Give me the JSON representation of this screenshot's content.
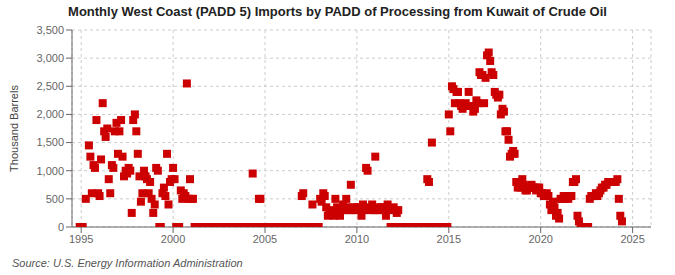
{
  "chart_data": {
    "type": "scatter",
    "title": "Monthly West Coast (PADD 5) Imports by PADD of Processing from Kuwait of Crude Oil",
    "ylabel": "Thousand Barrels",
    "annotations": [
      "Source: U.S. Energy Information Administration"
    ],
    "color": "#cc0000",
    "marker": "square",
    "grid": true,
    "xlim": [
      1994.5,
      2026.0
    ],
    "xticks": [
      1995,
      2000,
      2005,
      2010,
      2015,
      2020,
      2025
    ],
    "ylim": [
      0,
      3500
    ],
    "yticks": [
      0,
      500,
      {
        "value": 1000,
        "label": "1,000"
      },
      {
        "value": 1500,
        "label": "1,500"
      },
      {
        "value": 2000,
        "label": "2,000"
      },
      {
        "value": 2500,
        "label": "2,500"
      },
      {
        "value": 3000,
        "label": "3,000"
      },
      {
        "value": 3500,
        "label": "3,500"
      }
    ],
    "x": [
      1994.92,
      1995.08,
      1995.25,
      1995.42,
      1995.5,
      1995.58,
      1995.67,
      1995.75,
      1995.83,
      1995.92,
      1996.0,
      1996.08,
      1996.17,
      1996.25,
      1996.33,
      1996.42,
      1996.5,
      1996.58,
      1996.67,
      1996.75,
      1996.83,
      1996.92,
      1997.0,
      1997.08,
      1997.17,
      1997.25,
      1997.33,
      1997.42,
      1997.5,
      1997.58,
      1997.67,
      1997.75,
      1997.83,
      1997.92,
      1998.0,
      1998.08,
      1998.17,
      1998.25,
      1998.33,
      1998.42,
      1998.5,
      1998.58,
      1998.67,
      1998.75,
      1998.83,
      1998.92,
      1999.0,
      1999.08,
      1999.17,
      1999.25,
      1999.33,
      1999.42,
      1999.5,
      1999.58,
      1999.67,
      1999.75,
      1999.83,
      1999.92,
      2000.0,
      2000.08,
      2000.17,
      2000.25,
      2000.33,
      2000.42,
      2000.5,
      2000.58,
      2000.67,
      2000.75,
      2000.83,
      2000.92,
      2001.0,
      2001.08,
      2001.17,
      2001.25,
      2001.33,
      2001.42,
      2001.5,
      2001.58,
      2001.67,
      2001.75,
      2001.83,
      2001.92,
      2002.0,
      2002.08,
      2002.17,
      2002.25,
      2002.33,
      2002.42,
      2002.5,
      2002.58,
      2002.67,
      2002.75,
      2002.83,
      2002.92,
      2003.0,
      2003.08,
      2003.17,
      2003.25,
      2003.33,
      2003.42,
      2003.5,
      2003.58,
      2003.67,
      2003.75,
      2003.83,
      2003.92,
      2004.0,
      2004.08,
      2004.17,
      2004.25,
      2004.33,
      2004.42,
      2004.5,
      2004.58,
      2004.67,
      2004.75,
      2004.83,
      2004.92,
      2005.0,
      2005.08,
      2005.17,
      2005.25,
      2005.33,
      2005.42,
      2005.5,
      2005.58,
      2005.67,
      2005.75,
      2005.83,
      2005.92,
      2006.0,
      2006.08,
      2006.17,
      2006.25,
      2006.33,
      2006.42,
      2006.5,
      2006.58,
      2006.67,
      2006.75,
      2006.83,
      2006.92,
      2007.0,
      2007.08,
      2007.17,
      2007.25,
      2007.33,
      2007.42,
      2007.5,
      2007.58,
      2007.67,
      2007.75,
      2007.83,
      2007.92,
      2008.0,
      2008.08,
      2008.17,
      2008.25,
      2008.33,
      2008.42,
      2008.5,
      2008.58,
      2008.67,
      2008.75,
      2008.83,
      2008.92,
      2009.0,
      2009.08,
      2009.17,
      2009.25,
      2009.33,
      2009.42,
      2009.5,
      2009.58,
      2009.67,
      2009.75,
      2009.83,
      2009.92,
      2010.0,
      2010.08,
      2010.17,
      2010.25,
      2010.33,
      2010.42,
      2010.5,
      2010.58,
      2010.67,
      2010.75,
      2010.83,
      2010.92,
      2011.0,
      2011.08,
      2011.17,
      2011.25,
      2011.33,
      2011.42,
      2011.5,
      2011.58,
      2011.67,
      2011.75,
      2011.83,
      2011.92,
      2012.0,
      2012.08,
      2012.17,
      2012.25,
      2012.33,
      2012.42,
      2012.5,
      2012.58,
      2012.67,
      2012.75,
      2012.83,
      2012.92,
      2013.0,
      2013.08,
      2013.17,
      2013.25,
      2013.33,
      2013.42,
      2013.5,
      2013.58,
      2013.67,
      2013.75,
      2013.83,
      2013.92,
      2014.0,
      2014.08,
      2014.17,
      2014.25,
      2014.33,
      2014.42,
      2014.5,
      2014.58,
      2014.67,
      2014.75,
      2014.83,
      2014.92,
      2015.0,
      2015.08,
      2015.17,
      2015.25,
      2015.33,
      2015.42,
      2015.5,
      2015.58,
      2015.67,
      2015.75,
      2015.83,
      2015.92,
      2016.0,
      2016.08,
      2016.17,
      2016.25,
      2016.33,
      2016.42,
      2016.5,
      2016.58,
      2016.67,
      2016.75,
      2016.83,
      2016.92,
      2017.0,
      2017.08,
      2017.17,
      2017.25,
      2017.33,
      2017.42,
      2017.5,
      2017.58,
      2017.67,
      2017.75,
      2017.83,
      2017.92,
      2018.0,
      2018.08,
      2018.17,
      2018.25,
      2018.33,
      2018.42,
      2018.5,
      2018.58,
      2018.67,
      2018.75,
      2018.83,
      2018.92,
      2019.0,
      2019.08,
      2019.17,
      2019.25,
      2019.33,
      2019.42,
      2019.5,
      2019.58,
      2019.67,
      2019.75,
      2019.83,
      2019.92,
      2020.0,
      2020.08,
      2020.17,
      2020.25,
      2020.33,
      2020.42,
      2020.5,
      2020.58,
      2020.67,
      2020.75,
      2020.83,
      2020.92,
      2021.0,
      2021.08,
      2021.17,
      2021.25,
      2021.33,
      2021.42,
      2021.5,
      2021.58,
      2021.67,
      2021.75,
      2021.83,
      2021.92,
      2022.0,
      2022.08,
      2022.17,
      2022.25,
      2022.33,
      2022.42,
      2022.5,
      2022.58,
      2022.67,
      2022.75,
      2022.83,
      2022.92,
      2023.0,
      2023.08,
      2023.17,
      2023.25,
      2023.33,
      2023.42,
      2023.5,
      2023.58,
      2023.67,
      2023.75,
      2023.83,
      2023.92,
      2024.0,
      2024.08,
      2024.17,
      2024.25,
      2024.33,
      2024.42
    ],
    "values": [
      0,
      0,
      500,
      1450,
      1250,
      600,
      1100,
      1050,
      1900,
      600,
      550,
      1200,
      2200,
      1700,
      1600,
      1750,
      850,
      600,
      1100,
      1050,
      1700,
      1850,
      1300,
      1700,
      1900,
      1250,
      900,
      1000,
      950,
      1050,
      1000,
      250,
      1900,
      2000,
      1700,
      1300,
      900,
      450,
      600,
      1000,
      900,
      850,
      600,
      800,
      500,
      250,
      400,
      1050,
      1000,
      0,
      0,
      600,
      700,
      550,
      1300,
      400,
      800,
      850,
      1050,
      850,
      0,
      0,
      0,
      650,
      500,
      600,
      550,
      2550,
      500,
      850,
      500,
      500,
      0,
      0,
      0,
      0,
      0,
      0,
      0,
      0,
      0,
      0,
      0,
      0,
      0,
      0,
      0,
      0,
      0,
      0,
      0,
      0,
      0,
      0,
      0,
      0,
      0,
      0,
      0,
      0,
      0,
      0,
      0,
      0,
      0,
      0,
      0,
      0,
      0,
      0,
      950,
      0,
      0,
      0,
      500,
      500,
      0,
      0,
      0,
      0,
      0,
      0,
      0,
      0,
      0,
      0,
      0,
      0,
      0,
      0,
      0,
      0,
      0,
      0,
      0,
      0,
      0,
      0,
      0,
      0,
      0,
      0,
      550,
      600,
      0,
      0,
      0,
      0,
      0,
      400,
      0,
      0,
      0,
      0,
      500,
      450,
      600,
      550,
      350,
      200,
      250,
      300,
      250,
      200,
      500,
      350,
      250,
      200,
      300,
      400,
      300,
      500,
      350,
      300,
      750,
      300,
      350,
      300,
      350,
      350,
      300,
      200,
      400,
      300,
      1050,
      1000,
      350,
      300,
      400,
      300,
      1250,
      300,
      350,
      300,
      350,
      350,
      300,
      200,
      400,
      300,
      0,
      0,
      350,
      300,
      250,
      300,
      0,
      0,
      0,
      0,
      0,
      0,
      0,
      0,
      0,
      0,
      0,
      0,
      0,
      0,
      0,
      0,
      0,
      0,
      850,
      800,
      0,
      1500,
      0,
      0,
      0,
      0,
      0,
      0,
      0,
      0,
      0,
      0,
      2000,
      1700,
      2500,
      2450,
      2200,
      2400,
      2400,
      2200,
      2150,
      2100,
      2150,
      2200,
      2150,
      2400,
      2150,
      2150,
      2050,
      2100,
      2250,
      2200,
      2750,
      2700,
      2700,
      2200,
      2650,
      3050,
      3100,
      2950,
      2750,
      2700,
      2400,
      2350,
      2300,
      2350,
      2000,
      2100,
      2050,
      1700,
      1700,
      1550,
      1250,
      1300,
      1350,
      1300,
      800,
      700,
      750,
      700,
      850,
      750,
      650,
      650,
      700,
      700,
      750,
      700,
      700,
      650,
      700,
      700,
      600,
      600,
      550,
      550,
      600,
      550,
      400,
      300,
      450,
      350,
      200,
      250,
      150,
      500,
      500,
      550,
      500,
      550,
      500,
      550,
      550,
      800,
      800,
      850,
      200,
      100,
      0,
      0,
      0,
      0,
      0,
      0,
      500,
      550,
      550,
      550,
      600,
      550,
      600,
      650,
      700,
      700,
      750,
      750,
      800,
      800,
      800,
      800,
      800,
      800,
      850,
      500,
      200,
      100
    ]
  }
}
